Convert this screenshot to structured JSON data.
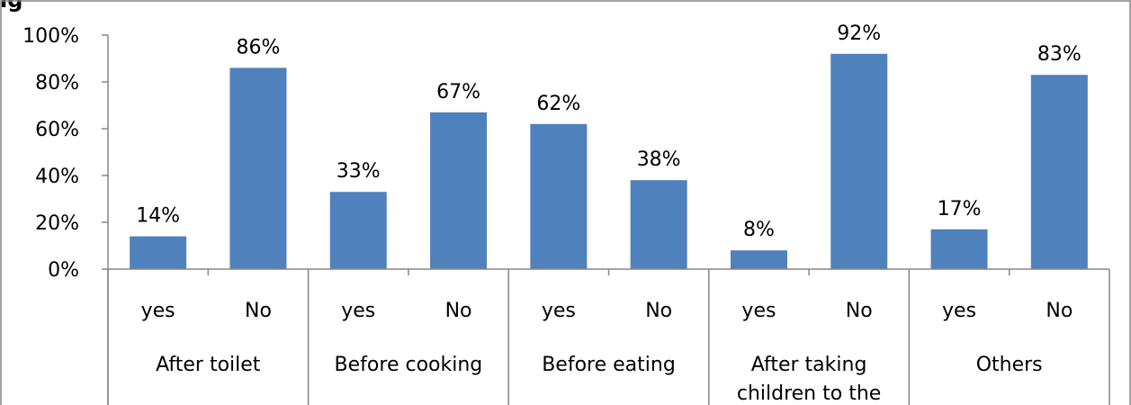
{
  "chart_data": {
    "type": "bar",
    "title": "ig",
    "groups": [
      "After toilet",
      "Before cooking",
      "Before eating",
      "After taking children to the",
      "Others"
    ],
    "categories": [
      "yes",
      "No",
      "yes",
      "No",
      "yes",
      "No",
      "yes",
      "No",
      "yes",
      "No"
    ],
    "values": [
      14,
      86,
      33,
      67,
      62,
      38,
      8,
      92,
      17,
      83
    ],
    "value_labels": [
      "14%",
      "86%",
      "33%",
      "67%",
      "62%",
      "38%",
      "8%",
      "92%",
      "17%",
      "83%"
    ],
    "y_ticks": [
      "0%",
      "20%",
      "40%",
      "60%",
      "80%",
      "100%"
    ],
    "ylim": [
      0,
      100
    ],
    "grid": false,
    "legend": "none",
    "bar_color": "#4F81BD",
    "xlabel": "",
    "ylabel": ""
  }
}
